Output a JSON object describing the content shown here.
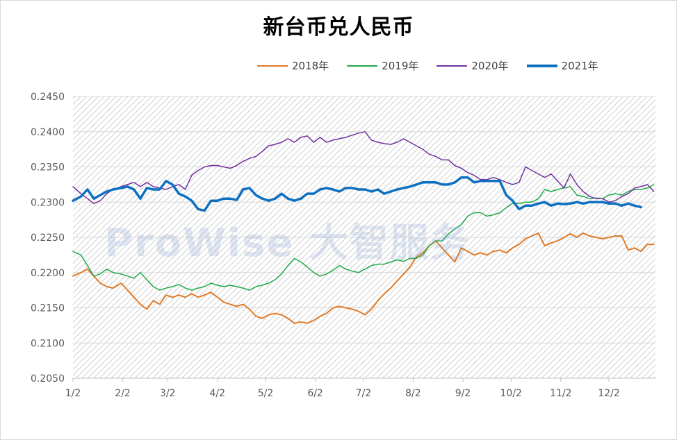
{
  "watermark": "ProWise 大智服务",
  "chart_data": {
    "type": "line",
    "title": "新台币兑人民币",
    "xlabel": "",
    "ylabel": "",
    "ylim": [
      0.205,
      0.245
    ],
    "y_ticks": [
      "0.2050",
      "0.2100",
      "0.2150",
      "0.2200",
      "0.2250",
      "0.2300",
      "0.2350",
      "0.2400",
      "0.2450"
    ],
    "x_ticks": [
      "1/2",
      "2/2",
      "3/2",
      "4/2",
      "5/2",
      "6/2",
      "7/2",
      "8/2",
      "9/2",
      "10/2",
      "11/2",
      "12/2"
    ],
    "x_tick_days": [
      0,
      31,
      59,
      90,
      120,
      151,
      181,
      212,
      243,
      273,
      304,
      334
    ],
    "x_range_days": [
      0,
      363
    ],
    "legend_position": "top",
    "grid": true,
    "series": [
      {
        "name": "2018年",
        "color": "#E07B28",
        "width": 2,
        "x": [
          0,
          5,
          9,
          13,
          17,
          21,
          25,
          30,
          34,
          38,
          42,
          46,
          50,
          54,
          58,
          62,
          66,
          70,
          74,
          78,
          82,
          86,
          90,
          94,
          98,
          102,
          106,
          110,
          114,
          118,
          122,
          126,
          130,
          134,
          138,
          142,
          146,
          150,
          154,
          158,
          162,
          166,
          170,
          174,
          178,
          182,
          186,
          190,
          194,
          198,
          202,
          206,
          210,
          214,
          218,
          222,
          226,
          230,
          234,
          238,
          242,
          246,
          250,
          254,
          258,
          262,
          266,
          270,
          274,
          278,
          282,
          286,
          290,
          294,
          298,
          302,
          306,
          310,
          314,
          318,
          322,
          326,
          330,
          334,
          338,
          342,
          346,
          350,
          354,
          358,
          362
        ],
        "y": [
          0.2195,
          0.22,
          0.2205,
          0.2195,
          0.2185,
          0.218,
          0.2178,
          0.2185,
          0.2175,
          0.2165,
          0.2155,
          0.2148,
          0.216,
          0.2155,
          0.2168,
          0.2165,
          0.2168,
          0.2165,
          0.217,
          0.2165,
          0.2168,
          0.2172,
          0.2165,
          0.2158,
          0.2155,
          0.2152,
          0.2155,
          0.2148,
          0.2138,
          0.2135,
          0.214,
          0.2142,
          0.214,
          0.2135,
          0.2128,
          0.213,
          0.2128,
          0.2132,
          0.2138,
          0.2142,
          0.215,
          0.2152,
          0.215,
          0.2148,
          0.2145,
          0.214,
          0.2148,
          0.216,
          0.217,
          0.2178,
          0.2188,
          0.2198,
          0.2208,
          0.2222,
          0.2228,
          0.2238,
          0.2245,
          0.2235,
          0.2225,
          0.2215,
          0.2235,
          0.223,
          0.2225,
          0.2228,
          0.2225,
          0.223,
          0.2232,
          0.2228,
          0.2235,
          0.224,
          0.2248,
          0.2252,
          0.2256,
          0.2238,
          0.2242,
          0.2245,
          0.225,
          0.2255,
          0.225,
          0.2256,
          0.2252,
          0.225,
          0.2248,
          0.225,
          0.2252,
          0.2252,
          0.2232,
          0.2235,
          0.223,
          0.224,
          0.224
        ]
      },
      {
        "name": "2019年",
        "color": "#21A94A",
        "width": 1.5,
        "x": [
          0,
          5,
          9,
          13,
          17,
          21,
          25,
          30,
          34,
          38,
          42,
          46,
          50,
          54,
          58,
          62,
          66,
          70,
          74,
          78,
          82,
          86,
          90,
          94,
          98,
          102,
          106,
          110,
          114,
          118,
          122,
          126,
          130,
          134,
          138,
          142,
          146,
          150,
          154,
          158,
          162,
          166,
          170,
          174,
          178,
          182,
          186,
          190,
          194,
          198,
          202,
          206,
          210,
          214,
          218,
          222,
          226,
          230,
          234,
          238,
          242,
          246,
          250,
          254,
          258,
          262,
          266,
          270,
          274,
          278,
          282,
          286,
          290,
          294,
          298,
          302,
          306,
          310,
          314,
          318,
          322,
          326,
          330,
          334,
          338,
          342,
          346,
          350,
          354,
          358,
          362
        ],
        "y": [
          0.223,
          0.2225,
          0.221,
          0.2195,
          0.2198,
          0.2205,
          0.22,
          0.2198,
          0.2195,
          0.2192,
          0.22,
          0.219,
          0.218,
          0.2175,
          0.2178,
          0.218,
          0.2183,
          0.2178,
          0.2175,
          0.2178,
          0.218,
          0.2185,
          0.2182,
          0.218,
          0.2182,
          0.218,
          0.2178,
          0.2175,
          0.218,
          0.2182,
          0.2185,
          0.219,
          0.2198,
          0.221,
          0.222,
          0.2215,
          0.2208,
          0.22,
          0.2195,
          0.2198,
          0.2203,
          0.221,
          0.2205,
          0.2202,
          0.22,
          0.2205,
          0.221,
          0.2212,
          0.2212,
          0.2215,
          0.2218,
          0.2216,
          0.222,
          0.222,
          0.2225,
          0.2238,
          0.2245,
          0.2245,
          0.2255,
          0.2262,
          0.2268,
          0.228,
          0.2285,
          0.2285,
          0.228,
          0.2282,
          0.2285,
          0.2292,
          0.2298,
          0.2298,
          0.23,
          0.23,
          0.2305,
          0.2318,
          0.2315,
          0.2318,
          0.232,
          0.2322,
          0.231,
          0.2308,
          0.2305,
          0.2306,
          0.2305,
          0.231,
          0.2312,
          0.231,
          0.2315,
          0.2318,
          0.2318,
          0.232,
          0.2325
        ]
      },
      {
        "name": "2020年",
        "color": "#7030A0",
        "width": 1.5,
        "x": [
          0,
          5,
          9,
          13,
          17,
          21,
          25,
          30,
          34,
          38,
          42,
          46,
          50,
          54,
          58,
          62,
          66,
          70,
          74,
          78,
          82,
          86,
          90,
          94,
          98,
          102,
          106,
          110,
          114,
          118,
          122,
          126,
          130,
          134,
          138,
          142,
          146,
          150,
          154,
          158,
          162,
          166,
          170,
          174,
          178,
          182,
          186,
          190,
          194,
          198,
          202,
          206,
          210,
          214,
          218,
          222,
          226,
          230,
          234,
          238,
          242,
          246,
          250,
          254,
          258,
          262,
          266,
          270,
          274,
          278,
          282,
          286,
          290,
          294,
          298,
          302,
          306,
          310,
          314,
          318,
          322,
          326,
          330,
          334,
          338,
          342,
          346,
          350,
          354,
          358,
          362
        ],
        "y": [
          0.2322,
          0.2312,
          0.2305,
          0.2298,
          0.2302,
          0.2312,
          0.2318,
          0.2322,
          0.2325,
          0.2328,
          0.2322,
          0.2328,
          0.2322,
          0.232,
          0.2318,
          0.2322,
          0.2325,
          0.2318,
          0.2338,
          0.2345,
          0.235,
          0.2352,
          0.2352,
          0.235,
          0.2348,
          0.2352,
          0.2358,
          0.2362,
          0.2365,
          0.2372,
          0.238,
          0.2382,
          0.2385,
          0.239,
          0.2385,
          0.2392,
          0.2394,
          0.2385,
          0.2392,
          0.2385,
          0.2388,
          0.239,
          0.2392,
          0.2395,
          0.2398,
          0.24,
          0.2388,
          0.2385,
          0.2383,
          0.2382,
          0.2385,
          0.239,
          0.2385,
          0.238,
          0.2375,
          0.2368,
          0.2365,
          0.236,
          0.236,
          0.2352,
          0.2348,
          0.2342,
          0.2338,
          0.2332,
          0.2332,
          0.2335,
          0.2332,
          0.2328,
          0.2325,
          0.2328,
          0.235,
          0.2345,
          0.234,
          0.2335,
          0.234,
          0.233,
          0.232,
          0.234,
          0.2325,
          0.2315,
          0.2308,
          0.2305,
          0.2305,
          0.23,
          0.2302,
          0.2308,
          0.2312,
          0.232,
          0.2322,
          0.2325,
          0.2315
        ]
      },
      {
        "name": "2021年",
        "color": "#0E70C0",
        "width": 3.5,
        "x": [
          0,
          5,
          9,
          13,
          17,
          21,
          25,
          30,
          34,
          38,
          42,
          46,
          50,
          54,
          58,
          62,
          66,
          70,
          74,
          78,
          82,
          86,
          90,
          94,
          98,
          102,
          106,
          110,
          114,
          118,
          122,
          126,
          130,
          134,
          138,
          142,
          146,
          150,
          154,
          158,
          162,
          166,
          170,
          174,
          178,
          182,
          186,
          190,
          194,
          198,
          202,
          206,
          210,
          214,
          218,
          222,
          226,
          230,
          234,
          238,
          242,
          246,
          250,
          254,
          258,
          262,
          266,
          270,
          274,
          278,
          282,
          286,
          290,
          294,
          298,
          302,
          306,
          310,
          314,
          318,
          322,
          326,
          330,
          334,
          338,
          342,
          346,
          350,
          354
        ],
        "y": [
          0.2302,
          0.2308,
          0.2318,
          0.2305,
          0.231,
          0.2315,
          0.2318,
          0.232,
          0.2322,
          0.2318,
          0.2305,
          0.232,
          0.2318,
          0.2318,
          0.233,
          0.2325,
          0.2312,
          0.2308,
          0.2302,
          0.229,
          0.2288,
          0.2302,
          0.2302,
          0.2305,
          0.2305,
          0.2303,
          0.2318,
          0.232,
          0.231,
          0.2305,
          0.2302,
          0.2305,
          0.2312,
          0.2305,
          0.2302,
          0.2305,
          0.2312,
          0.2312,
          0.2318,
          0.232,
          0.2318,
          0.2315,
          0.232,
          0.232,
          0.2318,
          0.2318,
          0.2315,
          0.2318,
          0.2312,
          0.2315,
          0.2318,
          0.232,
          0.2322,
          0.2325,
          0.2328,
          0.2328,
          0.2328,
          0.2325,
          0.2325,
          0.2328,
          0.2335,
          0.2335,
          0.2328,
          0.233,
          0.233,
          0.233,
          0.233,
          0.231,
          0.2302,
          0.229,
          0.2295,
          0.2295,
          0.2298,
          0.23,
          0.2295,
          0.2298,
          0.2297,
          0.2298,
          0.23,
          0.2298,
          0.23,
          0.23,
          0.23,
          0.2298,
          0.2298,
          0.2295,
          0.2298,
          0.2295,
          0.2293
        ]
      }
    ]
  }
}
